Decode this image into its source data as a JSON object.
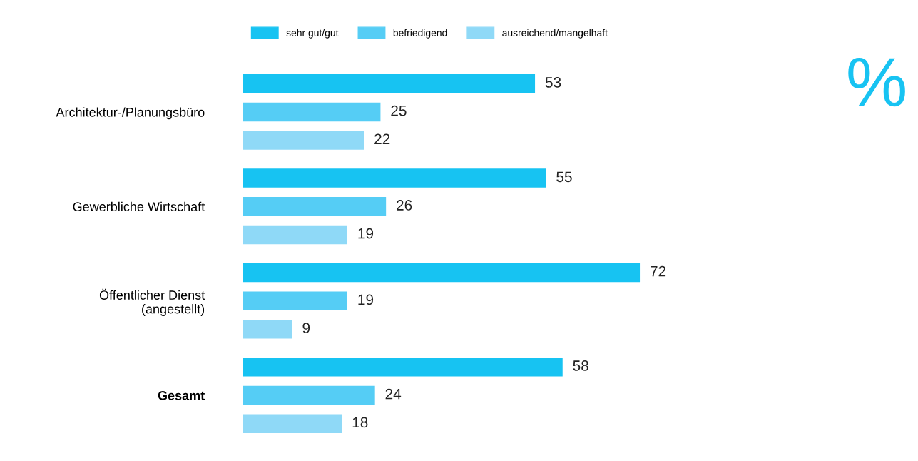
{
  "chart_data": {
    "type": "bar",
    "orientation": "horizontal",
    "categories": [
      "Architektur-/Planungsbüro",
      "Gewerbliche Wirtschaft",
      "Öffentlicher Dienst\n(angestellt)",
      "Gesamt"
    ],
    "series": [
      {
        "name": "sehr gut/gut",
        "color": "#17c3f2",
        "values": [
          53,
          55,
          72,
          58
        ]
      },
      {
        "name": "befriedigend",
        "color": "#55cdf5",
        "values": [
          25,
          26,
          19,
          24
        ]
      },
      {
        "name": "ausreichend/mangelhaft",
        "color": "#8fd9f7",
        "values": [
          22,
          19,
          9,
          18
        ]
      }
    ],
    "data_labels": true,
    "legend": "top left",
    "grid": false,
    "tick_labels": "y",
    "annotations": [
      "%"
    ]
  }
}
